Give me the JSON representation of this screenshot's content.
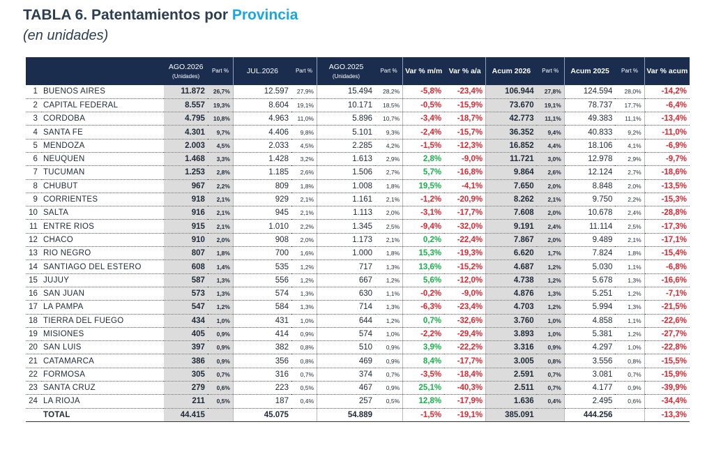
{
  "title": {
    "main": "TABLA 6. Patentamientos por ",
    "highlight": "Provincia",
    "subtitle": "(en unidades)"
  },
  "headers": {
    "ago2026": "AGO.2026",
    "units1": "(Unidades)",
    "jul2026": "JUL.2026",
    "ago2025": "AGO.2025",
    "units2": "(Unidades)",
    "part": "Part %",
    "var_mm": "Var % m/m",
    "var_aa": "Var % a/a",
    "acum2026": "Acum 2026",
    "acum2025": "Acum 2025",
    "var_acum": "Var % acum"
  },
  "rows": [
    [
      "1",
      "BUENOS AIRES",
      "11.872",
      "26,7%",
      "12.597",
      "27,9%",
      "15.494",
      "28,2%",
      "-5,8%",
      "-23,4%",
      "106.944",
      "27,8%",
      "124.594",
      "28,0%",
      "-14,2%"
    ],
    [
      "2",
      "CAPITAL FEDERAL",
      "8.557",
      "19,3%",
      "8.604",
      "19,1%",
      "10.171",
      "18,5%",
      "-0,5%",
      "-15,9%",
      "73.670",
      "19,1%",
      "78.737",
      "17,7%",
      "-6,4%"
    ],
    [
      "3",
      "CORDOBA",
      "4.795",
      "10,8%",
      "4.963",
      "11,0%",
      "5.896",
      "10,7%",
      "-3,4%",
      "-18,7%",
      "42.773",
      "11,1%",
      "49.383",
      "11,1%",
      "-13,4%"
    ],
    [
      "4",
      "SANTA FE",
      "4.301",
      "9,7%",
      "4.406",
      "9,8%",
      "5.101",
      "9,3%",
      "-2,4%",
      "-15,7%",
      "36.352",
      "9,4%",
      "40.833",
      "9,2%",
      "-11,0%"
    ],
    [
      "5",
      "MENDOZA",
      "2.003",
      "4,5%",
      "2.033",
      "4,5%",
      "2.285",
      "4,2%",
      "-1,5%",
      "-12,3%",
      "16.852",
      "4,4%",
      "18.106",
      "4,1%",
      "-6,9%"
    ],
    [
      "6",
      "NEUQUEN",
      "1.468",
      "3,3%",
      "1.428",
      "3,2%",
      "1.613",
      "2,9%",
      "2,8%",
      "-9,0%",
      "11.721",
      "3,0%",
      "12.978",
      "2,9%",
      "-9,7%"
    ],
    [
      "7",
      "TUCUMAN",
      "1.253",
      "2,8%",
      "1.185",
      "2,6%",
      "1.506",
      "2,7%",
      "5,7%",
      "-16,8%",
      "9.864",
      "2,6%",
      "12.124",
      "2,7%",
      "-18,6%"
    ],
    [
      "8",
      "CHUBUT",
      "967",
      "2,2%",
      "809",
      "1,8%",
      "1.008",
      "1,8%",
      "19,5%",
      "-4,1%",
      "7.650",
      "2,0%",
      "8.848",
      "2,0%",
      "-13,5%"
    ],
    [
      "9",
      "CORRIENTES",
      "918",
      "2,1%",
      "929",
      "2,1%",
      "1.161",
      "2,1%",
      "-1,2%",
      "-20,9%",
      "8.262",
      "2,1%",
      "9.750",
      "2,2%",
      "-15,3%"
    ],
    [
      "10",
      "SALTA",
      "916",
      "2,1%",
      "945",
      "2,1%",
      "1.113",
      "2,0%",
      "-3,1%",
      "-17,7%",
      "7.608",
      "2,0%",
      "10.678",
      "2,4%",
      "-28,8%"
    ],
    [
      "11",
      "ENTRE RIOS",
      "915",
      "2,1%",
      "1.010",
      "2,2%",
      "1.345",
      "2,5%",
      "-9,4%",
      "-32,0%",
      "9.191",
      "2,4%",
      "11.114",
      "2,5%",
      "-17,3%"
    ],
    [
      "12",
      "CHACO",
      "910",
      "2,0%",
      "908",
      "2,0%",
      "1.173",
      "2,1%",
      "0,2%",
      "-22,4%",
      "7.867",
      "2,0%",
      "9.489",
      "2,1%",
      "-17,1%"
    ],
    [
      "13",
      "RIO NEGRO",
      "807",
      "1,8%",
      "700",
      "1,6%",
      "1.000",
      "1,8%",
      "15,3%",
      "-19,3%",
      "6.620",
      "1,7%",
      "7.824",
      "1,8%",
      "-15,4%"
    ],
    [
      "14",
      "SANTIAGO DEL ESTERO",
      "608",
      "1,4%",
      "535",
      "1,2%",
      "717",
      "1,3%",
      "13,6%",
      "-15,2%",
      "4.687",
      "1,2%",
      "5.030",
      "1,1%",
      "-6,8%"
    ],
    [
      "15",
      "JUJUY",
      "587",
      "1,3%",
      "556",
      "1,2%",
      "667",
      "1,2%",
      "5,6%",
      "-12,0%",
      "4.738",
      "1,2%",
      "5.678",
      "1,3%",
      "-16,6%"
    ],
    [
      "16",
      "SAN JUAN",
      "573",
      "1,3%",
      "574",
      "1,3%",
      "630",
      "1,1%",
      "-0,2%",
      "-9,0%",
      "4.876",
      "1,3%",
      "5.251",
      "1,2%",
      "-7,1%"
    ],
    [
      "17",
      "LA PAMPA",
      "547",
      "1,2%",
      "584",
      "1,3%",
      "714",
      "1,3%",
      "-6,3%",
      "-23,4%",
      "4.703",
      "1,2%",
      "5.994",
      "1,3%",
      "-21,5%"
    ],
    [
      "18",
      "TIERRA DEL FUEGO",
      "434",
      "1,0%",
      "431",
      "1,0%",
      "644",
      "1,2%",
      "0,7%",
      "-32,6%",
      "3.760",
      "1,0%",
      "4.858",
      "1,1%",
      "-22,6%"
    ],
    [
      "19",
      "MISIONES",
      "405",
      "0,9%",
      "414",
      "0,9%",
      "574",
      "1,0%",
      "-2,2%",
      "-29,4%",
      "3.893",
      "1,0%",
      "5.381",
      "1,2%",
      "-27,7%"
    ],
    [
      "20",
      "SAN LUIS",
      "397",
      "0,9%",
      "382",
      "0,8%",
      "510",
      "0,9%",
      "3,9%",
      "-22,2%",
      "3.316",
      "0,9%",
      "4.297",
      "1,0%",
      "-22,8%"
    ],
    [
      "21",
      "CATAMARCA",
      "386",
      "0,9%",
      "356",
      "0,8%",
      "469",
      "0,9%",
      "8,4%",
      "-17,7%",
      "3.005",
      "0,8%",
      "3.556",
      "0,8%",
      "-15,5%"
    ],
    [
      "22",
      "FORMOSA",
      "305",
      "0,7%",
      "316",
      "0,7%",
      "374",
      "0,7%",
      "-3,5%",
      "-18,4%",
      "2.591",
      "0,7%",
      "3.081",
      "0,7%",
      "-15,9%"
    ],
    [
      "23",
      "SANTA CRUZ",
      "279",
      "0,6%",
      "223",
      "0,5%",
      "467",
      "0,9%",
      "25,1%",
      "-40,3%",
      "2.511",
      "0,7%",
      "4.177",
      "0,9%",
      "-39,9%"
    ],
    [
      "24",
      "LA RIOJA",
      "211",
      "0,5%",
      "187",
      "0,4%",
      "257",
      "0,5%",
      "12,8%",
      "-17,9%",
      "1.636",
      "0,4%",
      "2.495",
      "0,6%",
      "-34,4%"
    ]
  ],
  "total": [
    "",
    "TOTAL",
    "44.415",
    "",
    "45.075",
    "",
    "54.889",
    "",
    "-1,5%",
    "-19,1%",
    "385.091",
    "",
    "444.256",
    "",
    "-13,3%"
  ]
}
